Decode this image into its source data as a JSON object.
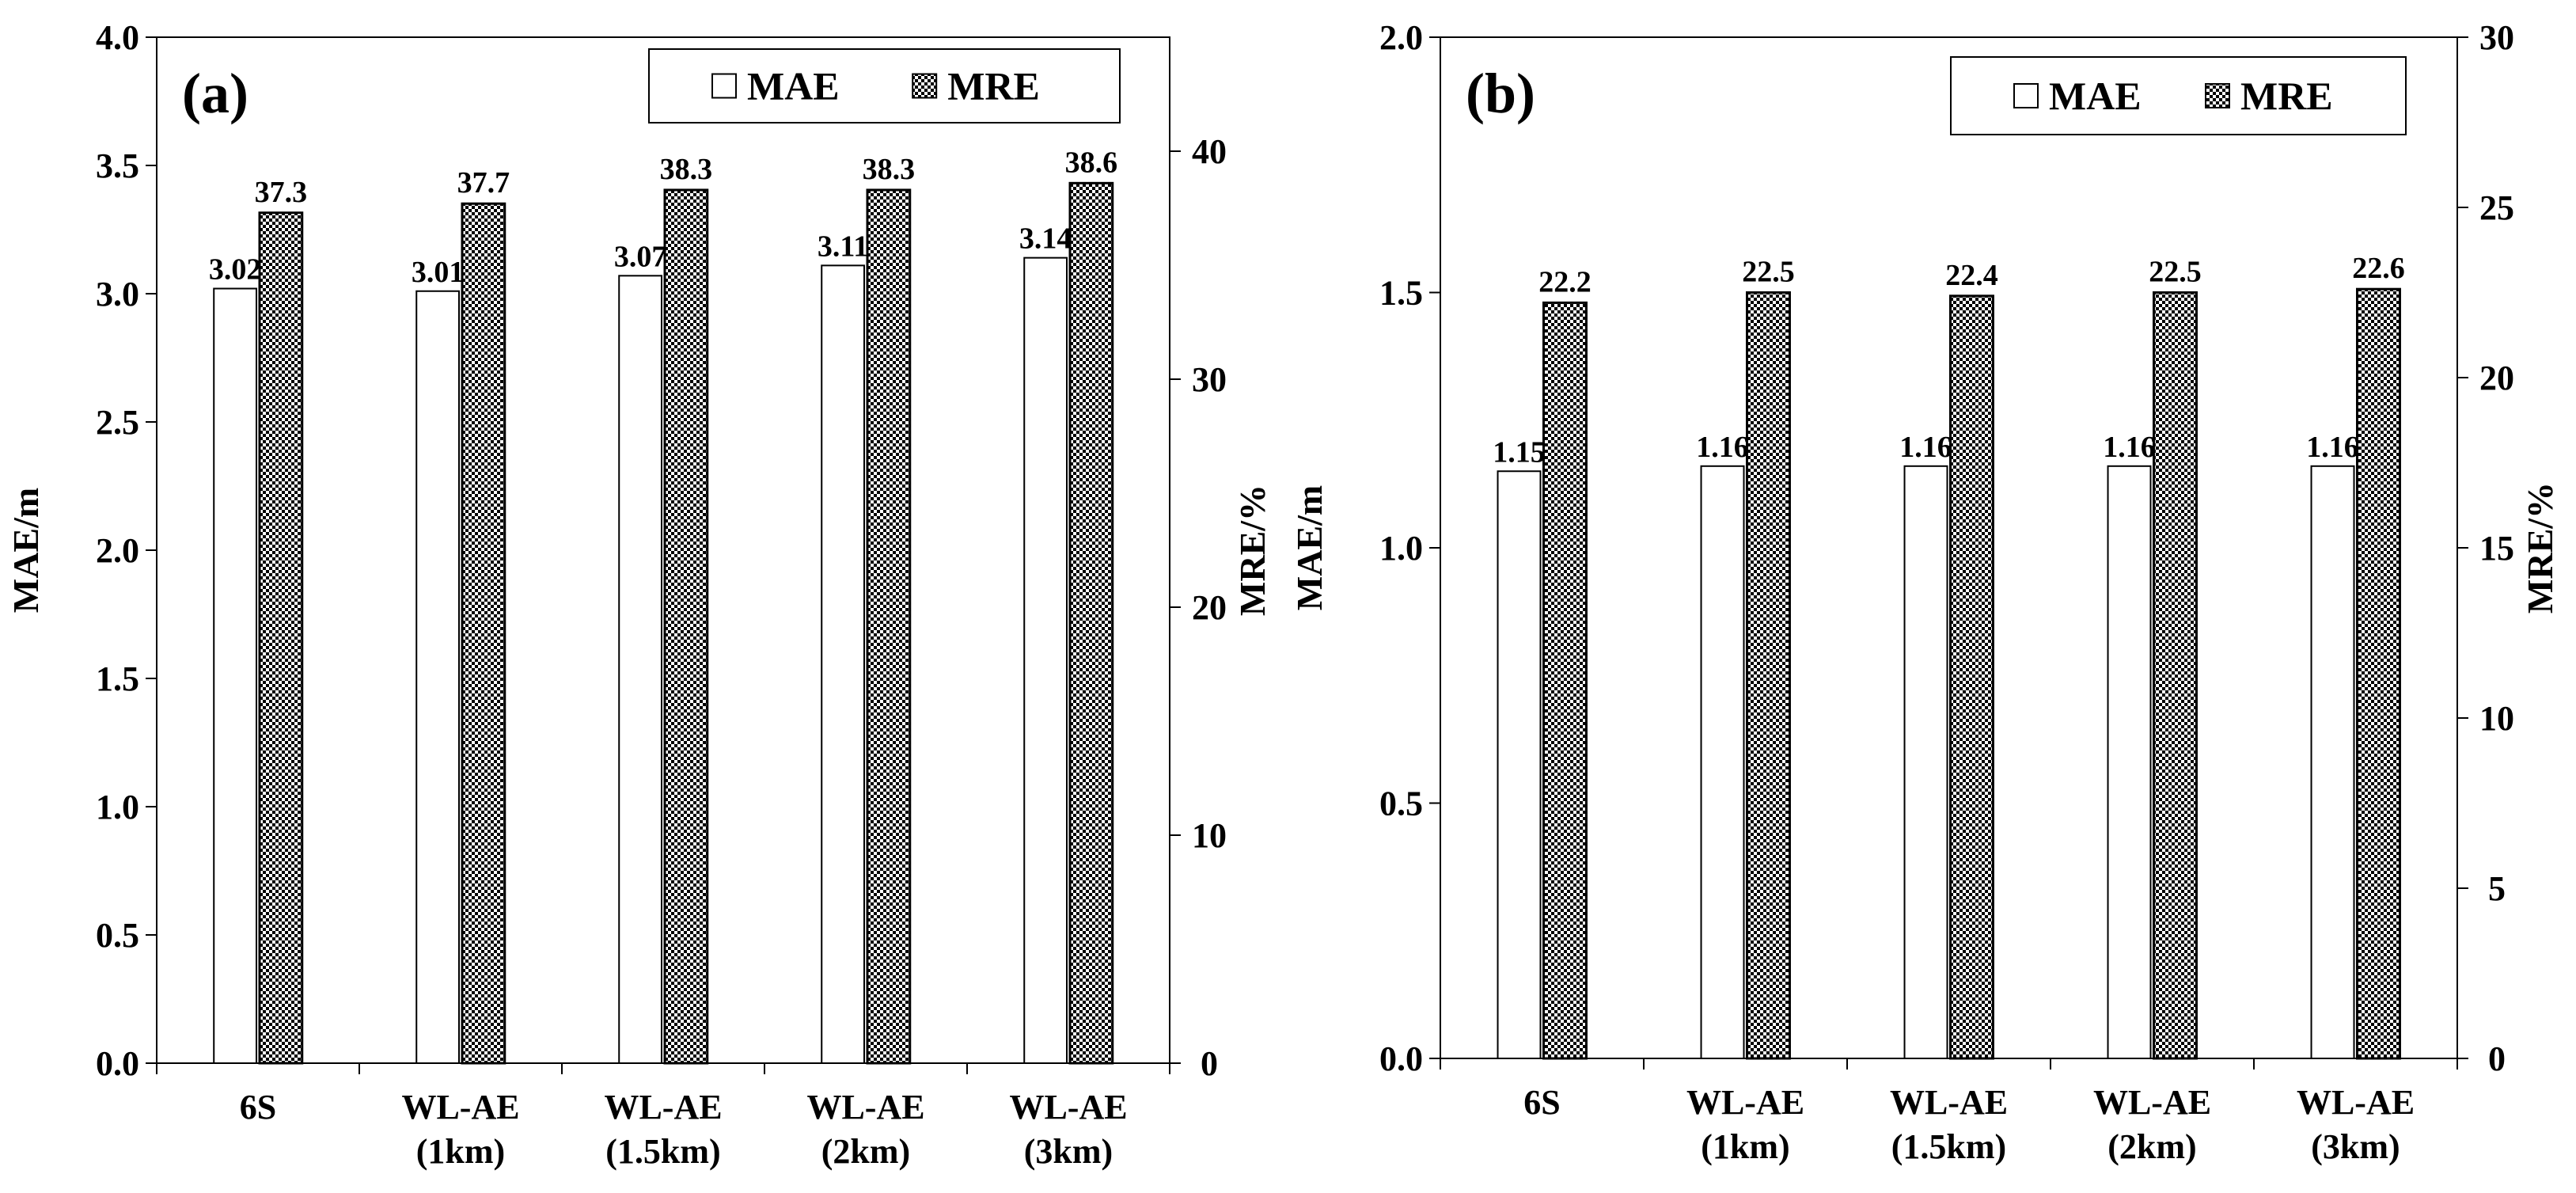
{
  "chart_data": [
    {
      "type": "bar",
      "panel_label": "(a)",
      "categories": [
        [
          "6S"
        ],
        [
          "WL-AE",
          "(1km)"
        ],
        [
          "WL-AE",
          "(1.5km)"
        ],
        [
          "WL-AE",
          "(2km)"
        ],
        [
          "WL-AE",
          "(3km)"
        ]
      ],
      "series": [
        {
          "name": "MAE",
          "axis": "left",
          "values": [
            3.02,
            3.01,
            3.07,
            3.11,
            3.14
          ],
          "labels": [
            "3.02",
            "3.01",
            "3.07",
            "3.11",
            "3.14"
          ],
          "fill": "plain",
          "color": "#ffffff"
        },
        {
          "name": "MRE",
          "axis": "right",
          "values": [
            37.3,
            37.7,
            38.3,
            38.3,
            38.6
          ],
          "labels": [
            "37.3",
            "37.7",
            "38.3",
            "38.3",
            "38.6"
          ],
          "fill": "checkered",
          "color": "#000000"
        }
      ],
      "ylabel": "MAE/m",
      "ylim": [
        0,
        4
      ],
      "yticks": [
        "0.0",
        "0.5",
        "1.0",
        "1.5",
        "2.0",
        "2.5",
        "3.0",
        "3.5",
        "4.0"
      ],
      "y2label": "MRE/%",
      "y2lim": [
        0,
        45
      ],
      "y2ticks": [
        "0",
        "10",
        "20",
        "30",
        "40"
      ],
      "legend": {
        "placement": "top-right"
      },
      "grid": false
    },
    {
      "type": "bar",
      "panel_label": "(b)",
      "categories": [
        [
          "6S"
        ],
        [
          "WL-AE",
          "(1km)"
        ],
        [
          "WL-AE",
          "(1.5km)"
        ],
        [
          "WL-AE",
          "(2km)"
        ],
        [
          "WL-AE",
          "(3km)"
        ]
      ],
      "series": [
        {
          "name": "MAE",
          "axis": "left",
          "values": [
            1.15,
            1.16,
            1.16,
            1.16,
            1.16
          ],
          "labels": [
            "1.15",
            "1.16",
            "1.16",
            "1.16",
            "1.16"
          ],
          "fill": "plain",
          "color": "#ffffff"
        },
        {
          "name": "MRE",
          "axis": "right",
          "values": [
            22.2,
            22.5,
            22.4,
            22.5,
            22.6
          ],
          "labels": [
            "22.2",
            "22.5",
            "22.4",
            "22.5",
            "22.6"
          ],
          "fill": "checkered",
          "color": "#000000"
        }
      ],
      "ylabel": "MAE/m",
      "ylim": [
        0,
        2
      ],
      "yticks": [
        "0.0",
        "0.5",
        "1.0",
        "1.5",
        "2.0"
      ],
      "y2label": "MRE/%",
      "y2lim": [
        0,
        30
      ],
      "y2ticks": [
        "0",
        "5",
        "10",
        "15",
        "20",
        "25",
        "30"
      ],
      "legend": {
        "placement": "top-right"
      },
      "grid": false
    }
  ]
}
